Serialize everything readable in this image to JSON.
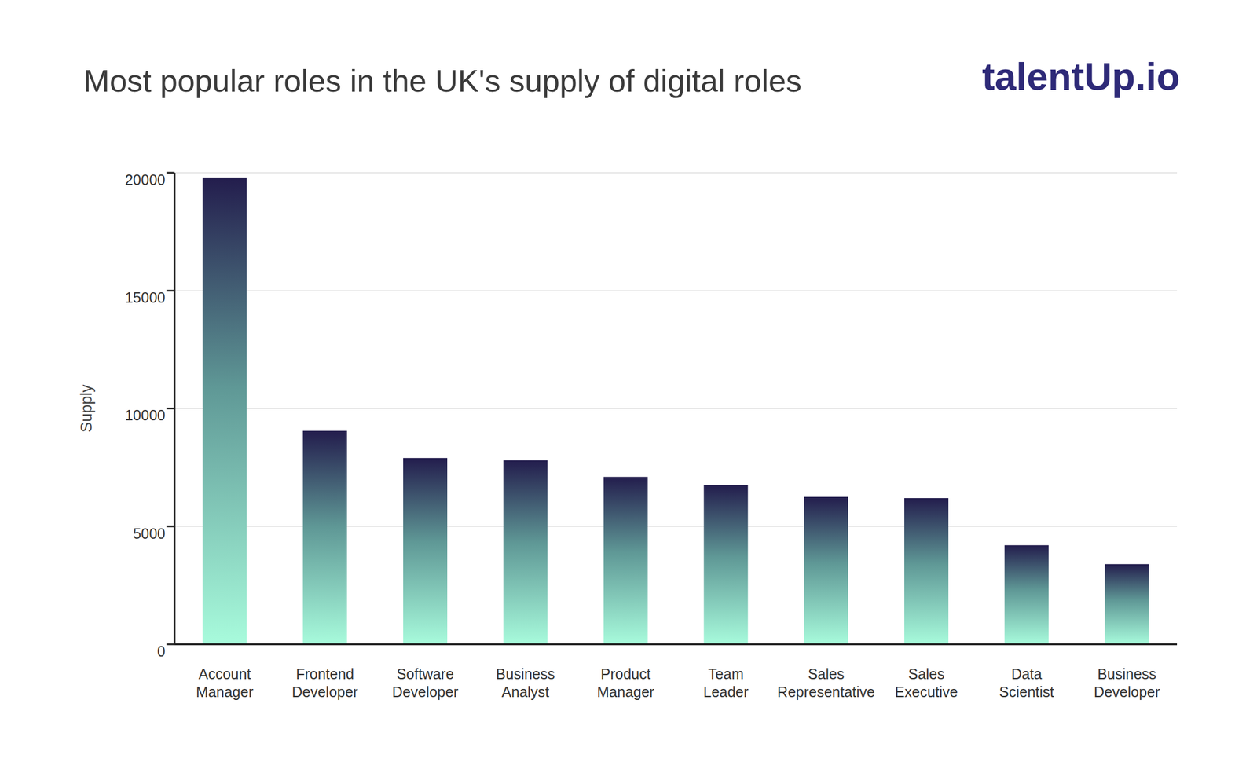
{
  "chart_data": {
    "type": "bar",
    "title": "Most popular roles in the UK's supply of digital roles",
    "logo": "talentUp.io",
    "y_label": "Supply",
    "categories": [
      "Account Manager",
      "Frontend Developer",
      "Software Developer",
      "Business Analyst",
      "Product Manager",
      "Team Leader",
      "Sales Representative",
      "Sales Executive",
      "Data Scientist",
      "Business Developer"
    ],
    "values": [
      19800,
      9050,
      7900,
      7800,
      7100,
      6750,
      6250,
      6200,
      4200,
      3400
    ],
    "color": "#231d4d",
    "ylim": [
      0,
      20000
    ],
    "yticks": [
      0,
      5000,
      10000,
      15000,
      20000
    ],
    "grid": true
  }
}
